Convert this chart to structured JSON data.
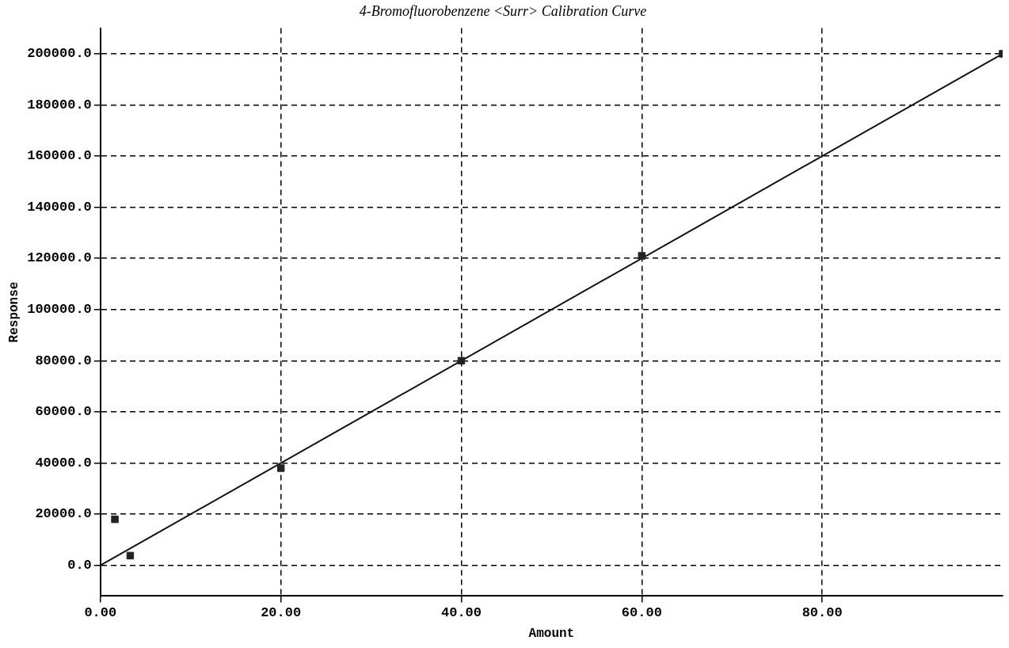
{
  "chart_data": {
    "type": "scatter",
    "title": "4-Bromofluorobenzene <Surr> Calibration Curve",
    "xlabel": "Amount",
    "ylabel": "Response",
    "series": [
      {
        "marker": "square",
        "color": "#222222",
        "x": [
          1.6,
          3.3,
          20,
          40,
          60,
          100
        ],
        "values": [
          18000,
          3800,
          38000,
          80000,
          121000,
          200000
        ]
      },
      {
        "type": "line",
        "color": "#111111",
        "x": [
          0,
          100
        ],
        "values": [
          0,
          200000
        ]
      }
    ],
    "xlim": [
      0,
      100
    ],
    "xticks": [
      {
        "value": 0,
        "label": "0.00"
      },
      {
        "value": 20,
        "label": "20.00"
      },
      {
        "value": 40,
        "label": "40.00"
      },
      {
        "value": 60,
        "label": "60.00"
      },
      {
        "value": 80,
        "label": "80.00"
      }
    ],
    "ylim": [
      -12000,
      210000
    ],
    "yticks": [
      {
        "value": 0,
        "label": "0.0"
      },
      {
        "value": 20000,
        "label": "20000.0"
      },
      {
        "value": 40000,
        "label": "40000.0"
      },
      {
        "value": 60000,
        "label": "60000.0"
      },
      {
        "value": 80000,
        "label": "80000.0"
      },
      {
        "value": 100000,
        "label": "100000.0"
      },
      {
        "value": 120000,
        "label": "120000.0"
      },
      {
        "value": 140000,
        "label": "140000.0"
      },
      {
        "value": 160000,
        "label": "160000.0"
      },
      {
        "value": 180000,
        "label": "180000.0"
      },
      {
        "value": 200000,
        "label": "200000.0"
      }
    ],
    "grid": true,
    "legend": false,
    "line_style": "solid"
  }
}
